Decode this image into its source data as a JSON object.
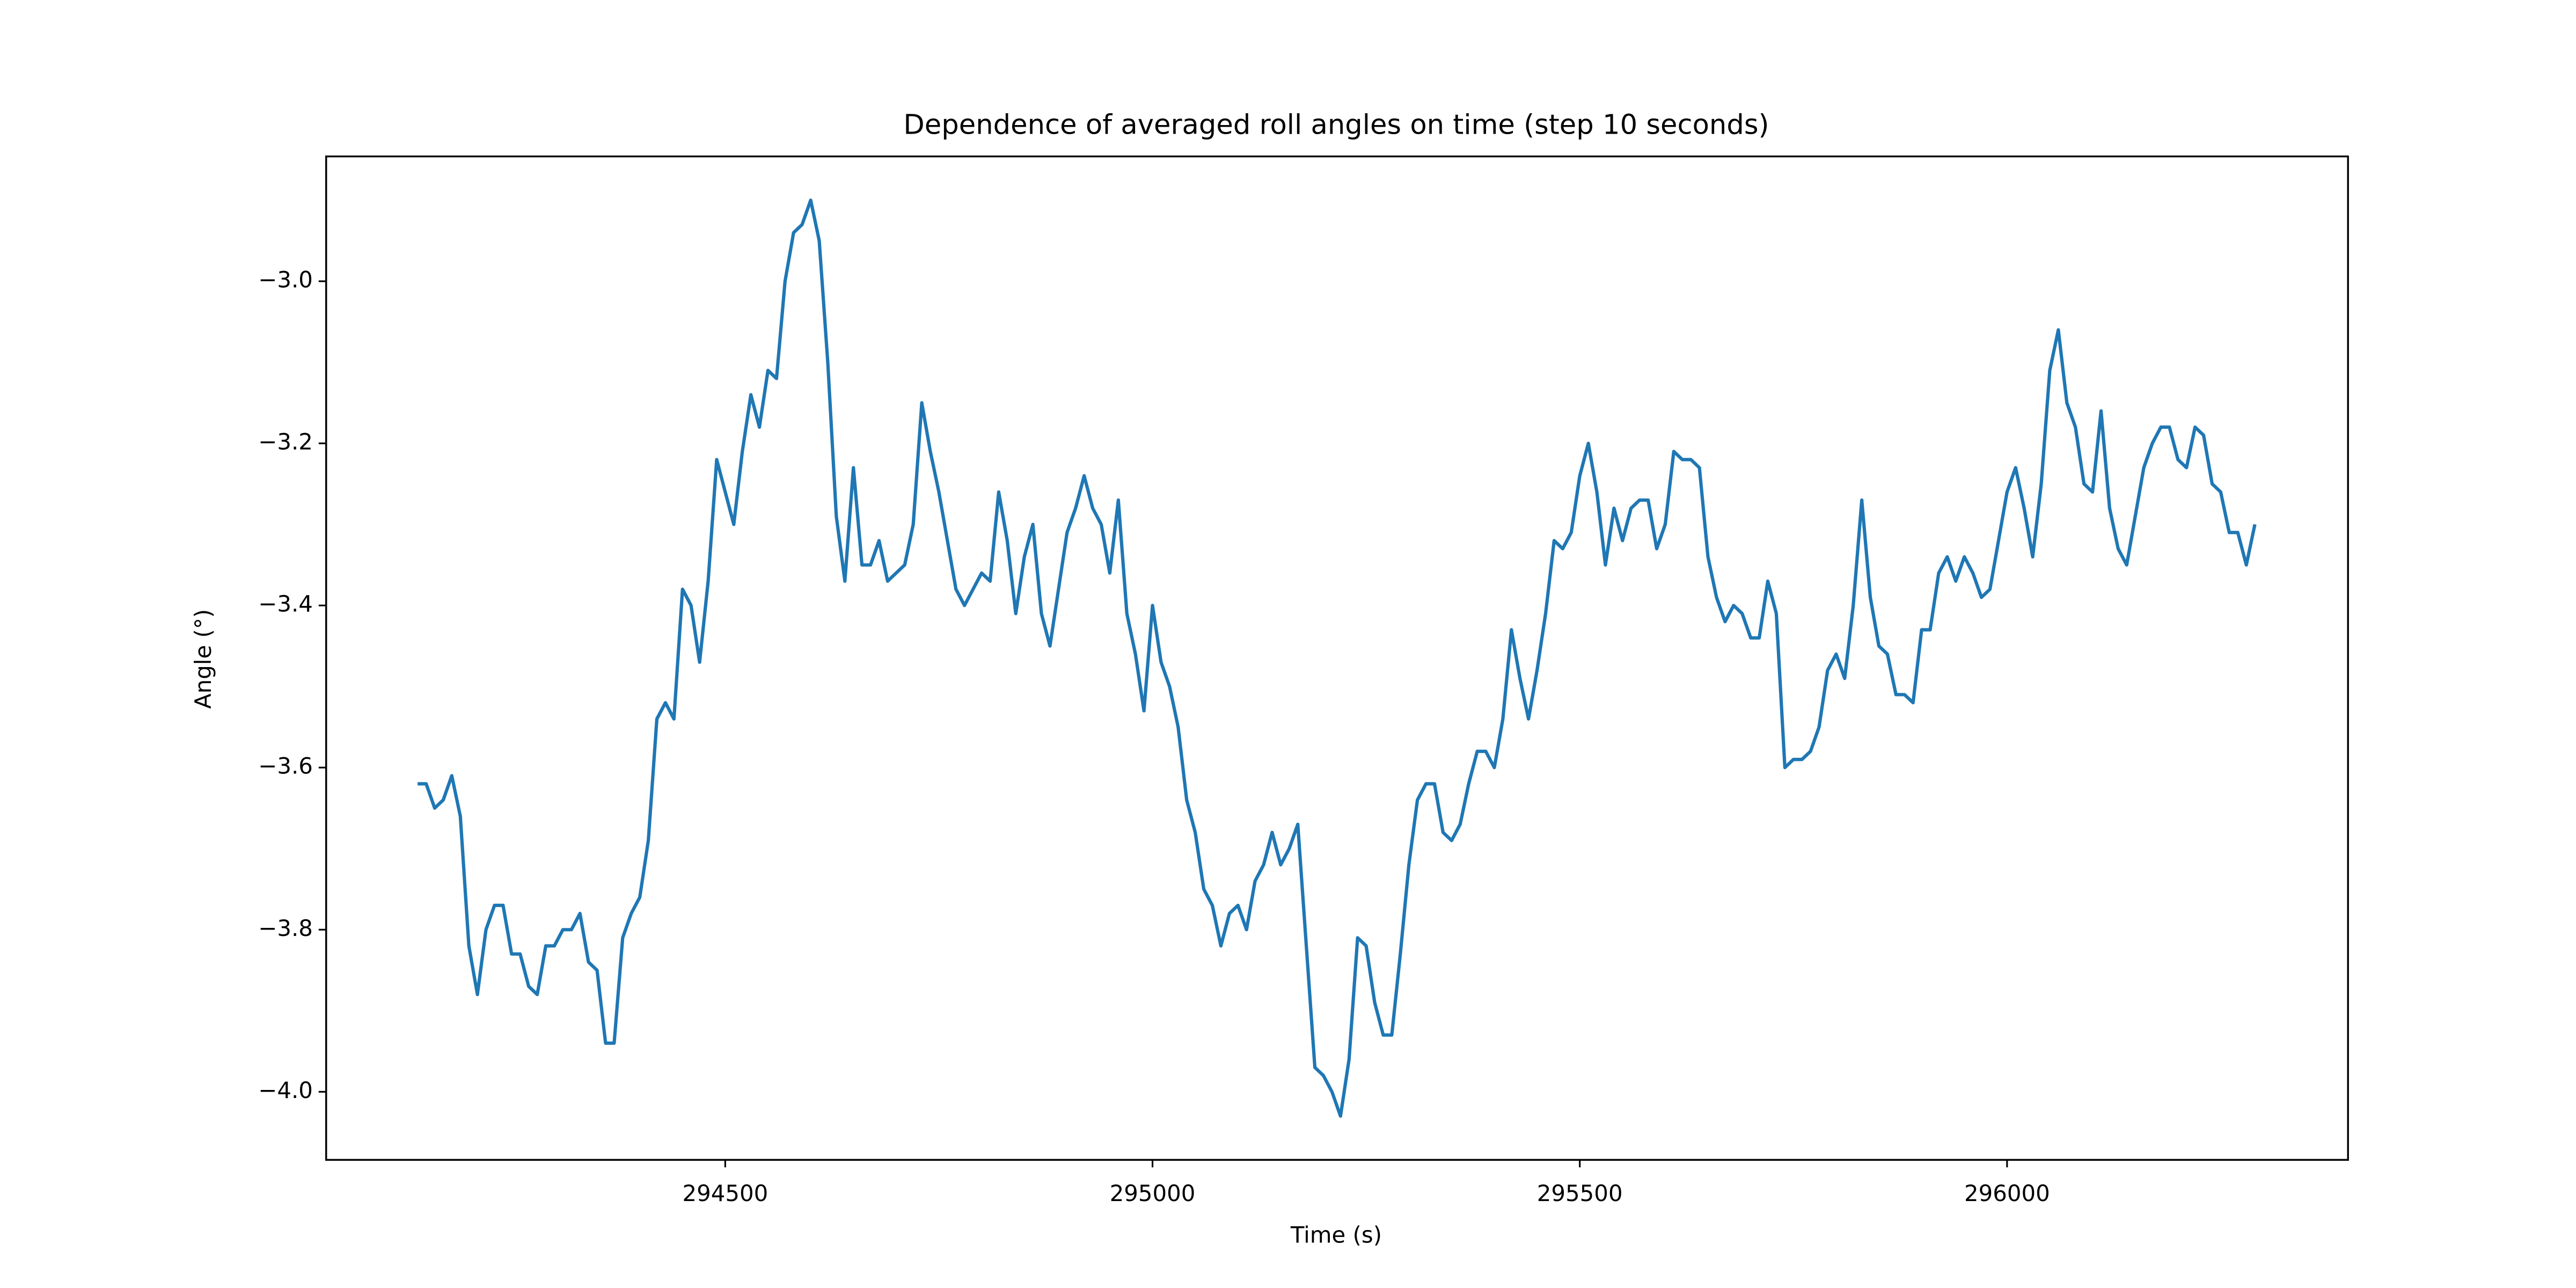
{
  "chart_data": {
    "type": "line",
    "title": "Dependence of averaged roll angles on time (step 10 seconds)",
    "x_label": "Time (s)",
    "y_label": "Angle (°)",
    "color": "#1f77b4",
    "xlim": [
      294033,
      296399
    ],
    "ylim": [
      -4.084,
      -2.846
    ],
    "xticks": [
      294500,
      295000,
      295500,
      296000
    ],
    "yticks": [
      {
        "value": -4.0,
        "label": "−4.0"
      },
      {
        "value": -3.8,
        "label": "−3.8"
      },
      {
        "value": -3.6,
        "label": "−3.6"
      },
      {
        "value": -3.4,
        "label": "−3.4"
      },
      {
        "value": -3.2,
        "label": "−3.2"
      },
      {
        "value": -3.0,
        "label": "−3.0"
      }
    ],
    "x": [
      294140,
      294150,
      294160,
      294170,
      294180,
      294190,
      294200,
      294210,
      294220,
      294230,
      294240,
      294250,
      294260,
      294270,
      294280,
      294290,
      294300,
      294310,
      294320,
      294330,
      294340,
      294350,
      294360,
      294370,
      294380,
      294390,
      294400,
      294410,
      294420,
      294430,
      294440,
      294450,
      294460,
      294470,
      294480,
      294490,
      294500,
      294510,
      294520,
      294530,
      294540,
      294550,
      294560,
      294570,
      294580,
      294590,
      294600,
      294610,
      294620,
      294630,
      294640,
      294650,
      294660,
      294670,
      294680,
      294690,
      294700,
      294710,
      294720,
      294730,
      294740,
      294750,
      294760,
      294770,
      294780,
      294790,
      294800,
      294810,
      294820,
      294830,
      294840,
      294850,
      294860,
      294870,
      294880,
      294890,
      294900,
      294910,
      294920,
      294930,
      294940,
      294950,
      294960,
      294970,
      294980,
      294990,
      295000,
      295010,
      295020,
      295030,
      295040,
      295050,
      295060,
      295070,
      295080,
      295090,
      295100,
      295110,
      295120,
      295130,
      295140,
      295150,
      295160,
      295170,
      295180,
      295190,
      295200,
      295210,
      295220,
      295230,
      295240,
      295250,
      295260,
      295270,
      295280,
      295290,
      295300,
      295310,
      295320,
      295330,
      295340,
      295350,
      295360,
      295370,
      295380,
      295390,
      295400,
      295410,
      295420,
      295430,
      295440,
      295450,
      295460,
      295470,
      295480,
      295490,
      295500,
      295510,
      295520,
      295530,
      295540,
      295550,
      295560,
      295570,
      295580,
      295590,
      295600,
      295610,
      295620,
      295630,
      295640,
      295650,
      295660,
      295670,
      295680,
      295690,
      295700,
      295710,
      295720,
      295730,
      295740,
      295750,
      295760,
      295770,
      295780,
      295790,
      295800,
      295810,
      295820,
      295830,
      295840,
      295850,
      295860,
      295870,
      295880,
      295890,
      295900,
      295910,
      295920,
      295930,
      295940,
      295950,
      295960,
      295970,
      295980,
      295990,
      296000,
      296010,
      296020,
      296030,
      296040,
      296050,
      296060,
      296070,
      296080,
      296090,
      296100,
      296110,
      296120,
      296130,
      296140,
      296150,
      296160,
      296170,
      296180,
      296190,
      296200,
      296210,
      296220,
      296230,
      296240,
      296250,
      296260,
      296270,
      296280,
      296290
    ],
    "values": [
      -3.62,
      -3.62,
      -3.65,
      -3.64,
      -3.61,
      -3.66,
      -3.82,
      -3.88,
      -3.8,
      -3.77,
      -3.77,
      -3.83,
      -3.83,
      -3.87,
      -3.88,
      -3.82,
      -3.82,
      -3.8,
      -3.8,
      -3.78,
      -3.84,
      -3.85,
      -3.94,
      -3.94,
      -3.81,
      -3.78,
      -3.76,
      -3.69,
      -3.54,
      -3.52,
      -3.54,
      -3.38,
      -3.4,
      -3.47,
      -3.37,
      -3.22,
      -3.26,
      -3.3,
      -3.21,
      -3.14,
      -3.18,
      -3.11,
      -3.12,
      -3.0,
      -2.94,
      -2.93,
      -2.9,
      -2.95,
      -3.1,
      -3.29,
      -3.37,
      -3.23,
      -3.35,
      -3.35,
      -3.32,
      -3.37,
      -3.36,
      -3.35,
      -3.3,
      -3.15,
      -3.21,
      -3.26,
      -3.32,
      -3.38,
      -3.4,
      -3.38,
      -3.36,
      -3.37,
      -3.26,
      -3.32,
      -3.41,
      -3.34,
      -3.3,
      -3.41,
      -3.45,
      -3.38,
      -3.31,
      -3.28,
      -3.24,
      -3.28,
      -3.3,
      -3.36,
      -3.27,
      -3.41,
      -3.46,
      -3.53,
      -3.4,
      -3.47,
      -3.5,
      -3.55,
      -3.64,
      -3.68,
      -3.75,
      -3.77,
      -3.82,
      -3.78,
      -3.77,
      -3.8,
      -3.74,
      -3.72,
      -3.68,
      -3.72,
      -3.7,
      -3.67,
      -3.82,
      -3.97,
      -3.98,
      -4.0,
      -4.03,
      -3.96,
      -3.81,
      -3.82,
      -3.89,
      -3.93,
      -3.93,
      -3.83,
      -3.72,
      -3.64,
      -3.62,
      -3.62,
      -3.68,
      -3.69,
      -3.67,
      -3.62,
      -3.58,
      -3.58,
      -3.6,
      -3.54,
      -3.43,
      -3.49,
      -3.54,
      -3.48,
      -3.41,
      -3.32,
      -3.33,
      -3.31,
      -3.24,
      -3.2,
      -3.26,
      -3.35,
      -3.28,
      -3.32,
      -3.28,
      -3.27,
      -3.27,
      -3.33,
      -3.3,
      -3.21,
      -3.22,
      -3.22,
      -3.23,
      -3.34,
      -3.39,
      -3.42,
      -3.4,
      -3.41,
      -3.44,
      -3.44,
      -3.37,
      -3.41,
      -3.6,
      -3.59,
      -3.59,
      -3.58,
      -3.55,
      -3.48,
      -3.46,
      -3.49,
      -3.4,
      -3.27,
      -3.39,
      -3.45,
      -3.46,
      -3.51,
      -3.51,
      -3.52,
      -3.43,
      -3.43,
      -3.36,
      -3.34,
      -3.37,
      -3.34,
      -3.36,
      -3.39,
      -3.38,
      -3.32,
      -3.26,
      -3.23,
      -3.28,
      -3.34,
      -3.25,
      -3.11,
      -3.06,
      -3.15,
      -3.18,
      -3.25,
      -3.26,
      -3.16,
      -3.28,
      -3.33,
      -3.35,
      -3.29,
      -3.23,
      -3.2,
      -3.18,
      -3.18,
      -3.22,
      -3.23,
      -3.18,
      -3.19,
      -3.25,
      -3.26,
      -3.31,
      -3.31,
      -3.35,
      -3.3
    ]
  }
}
